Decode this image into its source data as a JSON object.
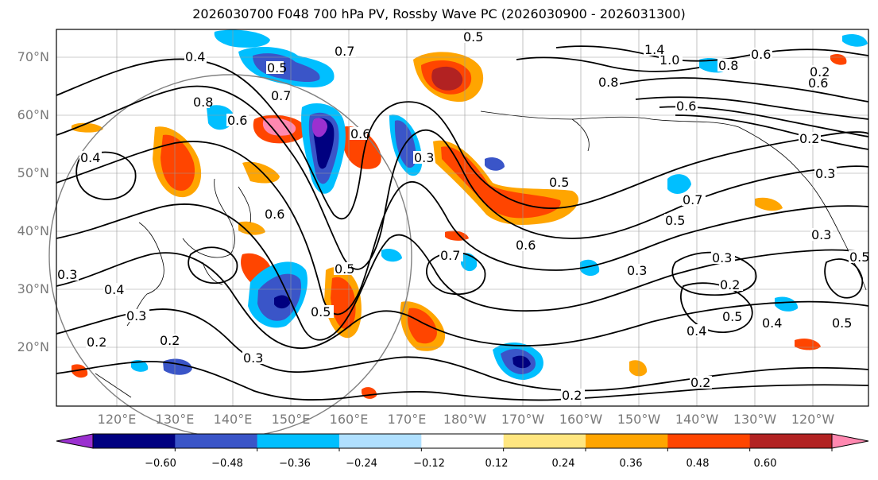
{
  "title": "2026030700 F048 700 hPa PV, Rossby Wave PC (2026030900 - 2026031300)",
  "lat_labels": [
    "70°N",
    "60°N",
    "50°N",
    "40°N",
    "30°N",
    "20°N"
  ],
  "lon_labels": [
    "120°E",
    "130°E",
    "140°E",
    "150°E",
    "160°E",
    "170°E",
    "180°W",
    "170°W",
    "160°W",
    "150°W",
    "140°W",
    "130°W",
    "120°W"
  ],
  "colorbar": {
    "colors": [
      "#9b30d0",
      "#000080",
      "#3a55c8",
      "#00bfff",
      "#b0e0ff",
      "#ffffff",
      "#ffe680",
      "#ffa500",
      "#ff4500",
      "#b22222",
      "#ff88b0"
    ],
    "ticks": [
      "−0.60",
      "−0.48",
      "−0.36",
      "−0.24",
      "−0.12",
      "0.12",
      "0.24",
      "0.36",
      "0.48",
      "0.60"
    ]
  },
  "contour_labels": [
    "0.5",
    "0.7",
    "1.0",
    "1.4",
    "0.8",
    "0.6",
    "0.4",
    "0.5",
    "0.7",
    "0.3",
    "0.5",
    "0.6",
    "0.8",
    "0.6",
    "0.2",
    "0.3",
    "0.4",
    "0.6",
    "0.5",
    "0.5",
    "0.7",
    "0.5",
    "0.7",
    "0.6",
    "0.3",
    "0.3",
    "0.2",
    "0.4",
    "0.5",
    "0.4",
    "0.5",
    "0.3",
    "0.4",
    "0.3",
    "0.2",
    "0.2",
    "0.3",
    "0.2",
    "0.2",
    "0.5",
    "0.3",
    "0.2",
    "0.6",
    "0.8",
    "0.6"
  ]
}
